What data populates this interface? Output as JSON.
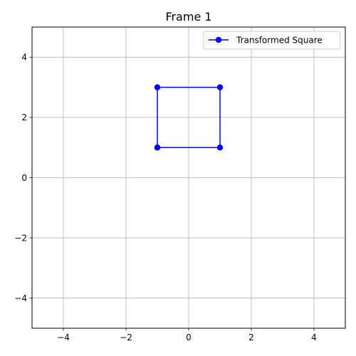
{
  "chart_data": {
    "type": "line",
    "title": "Frame 1",
    "xlabel": "",
    "ylabel": "",
    "xlim": [
      -5,
      5
    ],
    "ylim": [
      -5,
      5
    ],
    "x_ticks": [
      -4,
      -2,
      0,
      2,
      4
    ],
    "y_ticks": [
      -4,
      -2,
      0,
      2,
      4
    ],
    "x_tick_labels": [
      "−4",
      "−2",
      "0",
      "2",
      "4"
    ],
    "y_tick_labels": [
      "−4",
      "−2",
      "0",
      "2",
      "4"
    ],
    "grid": true,
    "legend_position": "top-right",
    "series": [
      {
        "name": "Transformed Square",
        "color": "#0000ff",
        "marker": "circle",
        "x": [
          -1,
          1,
          1,
          -1,
          -1
        ],
        "y": [
          1,
          1,
          3,
          3,
          1
        ]
      }
    ]
  }
}
